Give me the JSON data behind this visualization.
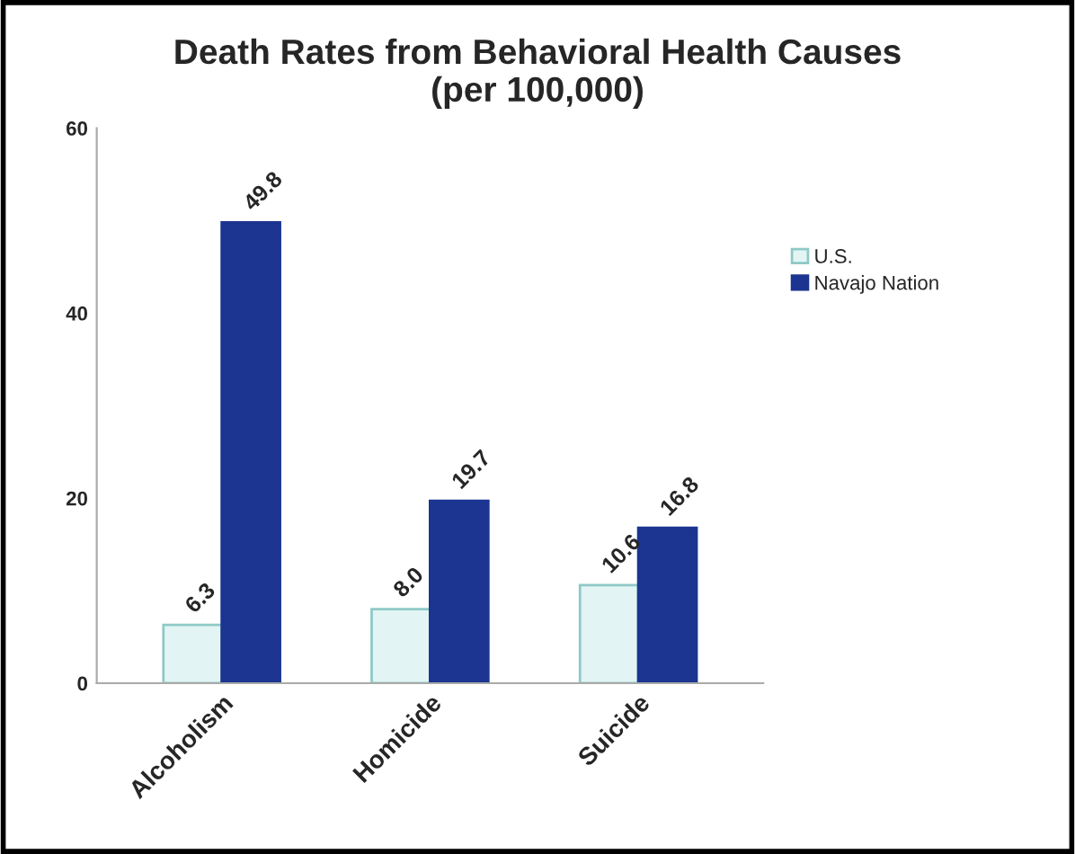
{
  "chart_data": {
    "type": "bar",
    "title": "Death Rates from Behavioral Health Causes\n(per 100,000)",
    "categories": [
      "Alcoholism",
      "Homicide",
      "Suicide"
    ],
    "series": [
      {
        "name": "U.S.",
        "color": "#e2f5f4",
        "values": [
          6.3,
          8.0,
          10.6
        ],
        "value_labels": [
          "6.3",
          "8.0",
          "10.6"
        ]
      },
      {
        "name": "Navajo Nation",
        "color": "#1b3590",
        "values": [
          49.8,
          19.7,
          16.8
        ],
        "value_labels": [
          "49.8",
          "19.7",
          "16.8"
        ]
      }
    ],
    "ylim": [
      0,
      60
    ],
    "yticks": [
      0,
      20,
      40,
      60
    ],
    "grid": false,
    "legend": "top right"
  }
}
